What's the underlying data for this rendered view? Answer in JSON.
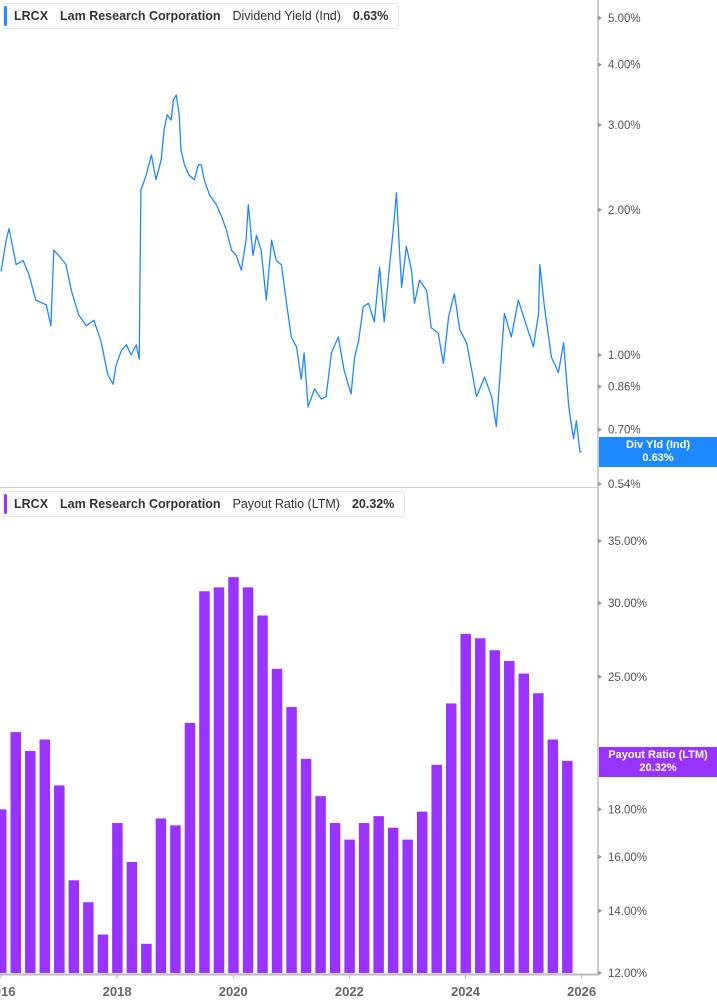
{
  "colors": {
    "yield": "#1e88ff",
    "payout": "#9933ff",
    "axis": "#999999",
    "text": "#555555"
  },
  "top_legend": {
    "ticker": "LRCX",
    "company": "Lam Research Corporation",
    "metric": "Dividend Yield (Ind)",
    "value": "0.63%"
  },
  "top_badge": {
    "label": "Div Yld (Ind)",
    "value": "0.63%"
  },
  "bottom_legend": {
    "ticker": "LRCX",
    "company": "Lam Research Corporation",
    "metric": "Payout Ratio (LTM)",
    "value": "20.32%"
  },
  "bottom_badge": {
    "label": "Payout Ratio (LTM)",
    "value": "20.32%"
  },
  "chart_data": [
    {
      "type": "line",
      "series_name": "Dividend Yield (Ind)",
      "y_scale": "log",
      "ylim": [
        0.5,
        5.3
      ],
      "xlim": [
        2016,
        2026
      ],
      "y_unit": "%",
      "y_ticks": [
        5,
        4,
        3,
        2,
        1,
        0.86,
        0.7,
        0.54
      ],
      "y_tick_labels": [
        "5.00%",
        "4.00%",
        "3.00%",
        "2.00%",
        "1.00%",
        "0.86%",
        "0.70%",
        "0.54%"
      ],
      "points": [
        [
          2016.0,
          1.49
        ],
        [
          2016.09,
          1.73
        ],
        [
          2016.14,
          1.83
        ],
        [
          2016.26,
          1.54
        ],
        [
          2016.38,
          1.57
        ],
        [
          2016.48,
          1.47
        ],
        [
          2016.6,
          1.3
        ],
        [
          2016.78,
          1.27
        ],
        [
          2016.86,
          1.15
        ],
        [
          2016.91,
          1.65
        ],
        [
          2017.03,
          1.59
        ],
        [
          2017.12,
          1.54
        ],
        [
          2017.21,
          1.36
        ],
        [
          2017.34,
          1.21
        ],
        [
          2017.47,
          1.15
        ],
        [
          2017.6,
          1.18
        ],
        [
          2017.72,
          1.07
        ],
        [
          2017.84,
          0.91
        ],
        [
          2017.93,
          0.87
        ],
        [
          2017.98,
          0.95
        ],
        [
          2018.07,
          1.02
        ],
        [
          2018.16,
          1.05
        ],
        [
          2018.24,
          1.0
        ],
        [
          2018.33,
          1.05
        ],
        [
          2018.38,
          0.98
        ],
        [
          2018.41,
          2.2
        ],
        [
          2018.5,
          2.36
        ],
        [
          2018.59,
          2.6
        ],
        [
          2018.67,
          2.31
        ],
        [
          2018.76,
          2.54
        ],
        [
          2018.81,
          2.93
        ],
        [
          2018.86,
          3.15
        ],
        [
          2018.93,
          3.07
        ],
        [
          2018.97,
          3.38
        ],
        [
          2019.02,
          3.46
        ],
        [
          2019.07,
          3.15
        ],
        [
          2019.1,
          2.66
        ],
        [
          2019.16,
          2.48
        ],
        [
          2019.24,
          2.36
        ],
        [
          2019.33,
          2.31
        ],
        [
          2019.4,
          2.48
        ],
        [
          2019.45,
          2.48
        ],
        [
          2019.5,
          2.31
        ],
        [
          2019.59,
          2.15
        ],
        [
          2019.71,
          2.05
        ],
        [
          2019.79,
          1.95
        ],
        [
          2019.88,
          1.82
        ],
        [
          2019.97,
          1.65
        ],
        [
          2020.05,
          1.61
        ],
        [
          2020.14,
          1.5
        ],
        [
          2020.22,
          1.73
        ],
        [
          2020.26,
          2.05
        ],
        [
          2020.34,
          1.61
        ],
        [
          2020.4,
          1.77
        ],
        [
          2020.48,
          1.65
        ],
        [
          2020.57,
          1.3
        ],
        [
          2020.66,
          1.73
        ],
        [
          2020.74,
          1.57
        ],
        [
          2020.83,
          1.54
        ],
        [
          2020.91,
          1.3
        ],
        [
          2021.0,
          1.09
        ],
        [
          2021.09,
          1.04
        ],
        [
          2021.17,
          0.89
        ],
        [
          2021.22,
          1.01
        ],
        [
          2021.29,
          0.78
        ],
        [
          2021.4,
          0.85
        ],
        [
          2021.52,
          0.81
        ],
        [
          2021.6,
          0.82
        ],
        [
          2021.69,
          1.01
        ],
        [
          2021.81,
          1.09
        ],
        [
          2021.91,
          0.93
        ],
        [
          2022.03,
          0.83
        ],
        [
          2022.09,
          0.99
        ],
        [
          2022.16,
          1.07
        ],
        [
          2022.24,
          1.26
        ],
        [
          2022.33,
          1.28
        ],
        [
          2022.43,
          1.17
        ],
        [
          2022.52,
          1.52
        ],
        [
          2022.6,
          1.17
        ],
        [
          2022.69,
          1.52
        ],
        [
          2022.76,
          1.84
        ],
        [
          2022.81,
          2.17
        ],
        [
          2022.86,
          1.68
        ],
        [
          2022.9,
          1.38
        ],
        [
          2022.98,
          1.68
        ],
        [
          2023.07,
          1.5
        ],
        [
          2023.12,
          1.28
        ],
        [
          2023.21,
          1.43
        ],
        [
          2023.33,
          1.36
        ],
        [
          2023.41,
          1.14
        ],
        [
          2023.53,
          1.11
        ],
        [
          2023.62,
          0.96
        ],
        [
          2023.71,
          1.2
        ],
        [
          2023.81,
          1.34
        ],
        [
          2023.9,
          1.13
        ],
        [
          2024.02,
          1.06
        ],
        [
          2024.1,
          0.94
        ],
        [
          2024.19,
          0.82
        ],
        [
          2024.33,
          0.9
        ],
        [
          2024.45,
          0.82
        ],
        [
          2024.53,
          0.71
        ],
        [
          2024.59,
          0.89
        ],
        [
          2024.67,
          1.22
        ],
        [
          2024.79,
          1.09
        ],
        [
          2024.91,
          1.3
        ],
        [
          2025.02,
          1.18
        ],
        [
          2025.17,
          1.04
        ],
        [
          2025.26,
          1.22
        ],
        [
          2025.28,
          1.54
        ],
        [
          2025.36,
          1.26
        ],
        [
          2025.48,
          0.99
        ],
        [
          2025.6,
          0.92
        ],
        [
          2025.69,
          1.06
        ],
        [
          2025.78,
          0.78
        ],
        [
          2025.86,
          0.67
        ],
        [
          2025.91,
          0.73
        ],
        [
          2025.97,
          0.63
        ],
        [
          2026.0,
          0.63
        ]
      ]
    },
    {
      "type": "bar",
      "series_name": "Payout Ratio (LTM)",
      "y_scale": "log",
      "ylim": [
        12,
        38
      ],
      "xlim": [
        2016,
        2026
      ],
      "y_unit": "%",
      "y_ticks": [
        35,
        30,
        25,
        18,
        16,
        14,
        12
      ],
      "y_tick_labels": [
        "35.00%",
        "30.00%",
        "25.00%",
        "18.00%",
        "16.00%",
        "14.00%",
        "12.00%"
      ],
      "x_ticks": [
        2016,
        2018,
        2020,
        2022,
        2024,
        2026
      ],
      "x_tick_labels": [
        "2016",
        "2018",
        "2020",
        "2022",
        "2024",
        "2026"
      ],
      "categories": [
        "2016-Q1",
        "2016-Q2",
        "2016-Q3",
        "2016-Q4",
        "2017-Q1",
        "2017-Q2",
        "2017-Q3",
        "2017-Q4",
        "2018-Q1",
        "2018-Q2",
        "2018-Q3",
        "2018-Q4",
        "2019-Q1",
        "2019-Q2",
        "2019-Q3",
        "2019-Q4",
        "2020-Q1",
        "2020-Q2",
        "2020-Q3",
        "2020-Q4",
        "2021-Q1",
        "2021-Q2",
        "2021-Q3",
        "2021-Q4",
        "2022-Q1",
        "2022-Q2",
        "2022-Q3",
        "2022-Q4",
        "2023-Q1",
        "2023-Q2",
        "2023-Q3",
        "2023-Q4",
        "2024-Q1",
        "2024-Q2",
        "2024-Q3",
        "2024-Q4",
        "2025-Q1",
        "2025-Q2",
        "2025-Q3",
        "2025-Q4"
      ],
      "values": [
        18.0,
        21.8,
        20.8,
        21.4,
        19.1,
        15.1,
        14.3,
        13.2,
        17.4,
        15.8,
        12.9,
        17.6,
        17.3,
        22.3,
        30.9,
        31.2,
        32.0,
        31.2,
        29.1,
        25.5,
        23.2,
        20.4,
        18.6,
        17.4,
        16.7,
        17.4,
        17.7,
        17.2,
        16.7,
        17.9,
        20.1,
        23.4,
        27.8,
        27.5,
        26.7,
        26.0,
        25.2,
        24.0,
        21.4,
        20.3
      ]
    }
  ]
}
